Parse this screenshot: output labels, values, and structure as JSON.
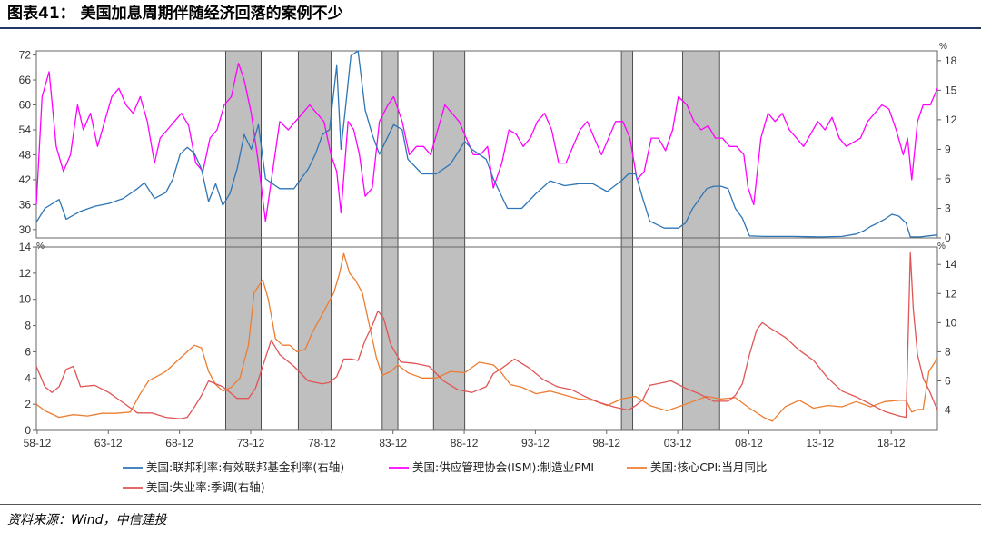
{
  "header": {
    "title": "图表41：   美国加息周期伴随经济回落的案例不少"
  },
  "footer": {
    "source": "资料来源：Wind，中信建投"
  },
  "chart_data": [
    {
      "type": "line",
      "panel": "top",
      "x_range": [
        1958.9,
        2022.2
      ],
      "ylim_left": [
        28,
        73
      ],
      "yticks_left": [
        30,
        36,
        42,
        48,
        54,
        60,
        66,
        72
      ],
      "ylim_right": [
        0,
        19
      ],
      "yticks_right": [
        0,
        3,
        6,
        9,
        12,
        15,
        18
      ],
      "right_unit": "%",
      "series": [
        {
          "name": "美国:联邦利率:有效联邦基金利率(右轴)",
          "axis": "right",
          "color": "#2e75b6",
          "x": [
            1958.9,
            1959.5,
            1960.5,
            1961.0,
            1962.0,
            1963.0,
            1964.0,
            1965.0,
            1966.0,
            1966.5,
            1967.2,
            1968.0,
            1968.5,
            1969.0,
            1969.5,
            1970.0,
            1970.5,
            1971.0,
            1971.5,
            1972.0,
            1972.5,
            1973.0,
            1973.5,
            1974.0,
            1974.5,
            1975.0,
            1975.5,
            1976.0,
            1977.0,
            1978.0,
            1978.5,
            1979.0,
            1979.5,
            1980.0,
            1980.3,
            1980.6,
            1981.0,
            1981.5,
            1982.0,
            1982.5,
            1983.0,
            1984.0,
            1984.6,
            1985.0,
            1986.0,
            1987.0,
            1988.0,
            1989.0,
            1989.5,
            1990.0,
            1990.5,
            1991.0,
            1992.0,
            1993.0,
            1994.0,
            1995.0,
            1996.0,
            1997.0,
            1998.0,
            1999.0,
            2000.0,
            2000.5,
            2001.0,
            2001.5,
            2002.0,
            2003.0,
            2004.0,
            2004.5,
            2005.0,
            2006.0,
            2006.5,
            2007.0,
            2007.5,
            2008.0,
            2008.5,
            2009.0,
            2010.0,
            2012.0,
            2014.0,
            2015.5,
            2016.5,
            2017.0,
            2017.5,
            2018.0,
            2018.5,
            2019.0,
            2019.5,
            2020.0,
            2020.3,
            2021.0,
            2022.2
          ],
          "values": [
            1.6,
            3.0,
            3.9,
            1.9,
            2.7,
            3.2,
            3.5,
            4.0,
            5.0,
            5.6,
            4.0,
            4.6,
            6.0,
            8.5,
            9.2,
            8.6,
            7.0,
            3.7,
            5.5,
            3.3,
            4.5,
            7.0,
            10.5,
            9.0,
            11.5,
            6.0,
            5.5,
            5.0,
            5.0,
            7.0,
            8.5,
            10.5,
            11.0,
            17.5,
            9.0,
            13.0,
            18.5,
            19.0,
            13.0,
            10.5,
            8.5,
            11.5,
            11.0,
            8.0,
            6.5,
            6.5,
            7.5,
            9.8,
            9.0,
            8.5,
            8.0,
            6.0,
            3.0,
            3.0,
            4.5,
            5.8,
            5.3,
            5.5,
            5.5,
            4.7,
            5.8,
            6.5,
            6.5,
            4.0,
            1.7,
            1.0,
            1.0,
            1.5,
            3.0,
            5.0,
            5.25,
            5.25,
            5.0,
            3.0,
            2.0,
            0.2,
            0.15,
            0.15,
            0.1,
            0.15,
            0.4,
            0.7,
            1.15,
            1.5,
            1.9,
            2.4,
            2.2,
            1.5,
            0.1,
            0.1,
            0.3
          ]
        },
        {
          "name": "美国:供应管理协会(ISM):制造业PMI",
          "axis": "left",
          "color": "#ff00ff",
          "x": [
            1958.9,
            1959.3,
            1959.8,
            1960.3,
            1960.8,
            1961.3,
            1961.8,
            1962.2,
            1962.7,
            1963.2,
            1963.7,
            1964.2,
            1964.7,
            1965.2,
            1965.7,
            1966.2,
            1966.7,
            1967.2,
            1967.6,
            1968.1,
            1968.6,
            1969.1,
            1969.6,
            1970.1,
            1970.6,
            1971.1,
            1971.6,
            1972.1,
            1972.6,
            1973.1,
            1973.5,
            1974.0,
            1974.5,
            1975.0,
            1975.5,
            1976.0,
            1976.6,
            1977.1,
            1977.6,
            1978.1,
            1978.6,
            1979.1,
            1979.6,
            1980.0,
            1980.3,
            1980.8,
            1981.2,
            1981.6,
            1982.0,
            1982.5,
            1983.0,
            1983.6,
            1984.0,
            1984.6,
            1985.1,
            1985.6,
            1986.1,
            1986.6,
            1987.1,
            1987.6,
            1988.1,
            1988.6,
            1989.1,
            1989.6,
            1990.1,
            1990.6,
            1991.0,
            1991.6,
            1992.1,
            1992.6,
            1993.1,
            1993.6,
            1994.1,
            1994.6,
            1995.1,
            1995.6,
            1996.1,
            1996.6,
            1997.1,
            1997.6,
            1998.1,
            1998.6,
            1999.1,
            1999.6,
            2000.1,
            2000.6,
            2001.1,
            2001.6,
            2002.1,
            2002.6,
            2003.1,
            2003.6,
            2004.0,
            2004.6,
            2005.1,
            2005.6,
            2006.1,
            2006.6,
            2007.1,
            2007.6,
            2008.1,
            2008.6,
            2008.9,
            2009.3,
            2009.8,
            2010.3,
            2010.8,
            2011.3,
            2011.8,
            2012.3,
            2012.8,
            2013.3,
            2013.8,
            2014.3,
            2014.8,
            2015.3,
            2015.8,
            2016.3,
            2016.8,
            2017.3,
            2017.8,
            2018.3,
            2018.8,
            2019.3,
            2019.8,
            2020.1,
            2020.4,
            2020.8,
            2021.2,
            2021.7,
            2022.2
          ],
          "values": [
            36,
            62,
            68,
            50,
            44,
            48,
            60,
            54,
            58,
            50,
            56,
            62,
            64,
            60,
            58,
            62,
            56,
            46,
            52,
            54,
            56,
            58,
            55,
            46,
            44,
            52,
            54,
            60,
            62,
            70,
            66,
            58,
            46,
            32,
            44,
            56,
            54,
            56,
            58,
            60,
            58,
            56,
            48,
            44,
            34,
            56,
            54,
            48,
            38,
            40,
            56,
            60,
            62,
            56,
            48,
            50,
            50,
            48,
            54,
            60,
            58,
            56,
            52,
            48,
            48,
            50,
            40,
            46,
            54,
            53,
            50,
            52,
            56,
            58,
            54,
            46,
            46,
            50,
            54,
            56,
            52,
            48,
            52,
            56,
            56,
            52,
            42,
            44,
            52,
            52,
            49,
            54,
            62,
            60,
            56,
            54,
            55,
            52,
            52,
            50,
            50,
            48,
            40,
            36,
            52,
            58,
            56,
            58,
            54,
            52,
            50,
            53,
            56,
            54,
            57,
            52,
            50,
            51,
            52,
            56,
            58,
            60,
            59,
            54,
            48,
            52,
            42,
            56,
            60,
            60,
            64
          ]
        }
      ]
    },
    {
      "type": "line",
      "panel": "bottom",
      "x_range": [
        1958.9,
        2022.2
      ],
      "ylim_left": [
        0,
        14
      ],
      "yticks_left": [
        0,
        2,
        4,
        6,
        8,
        10,
        12,
        14
      ],
      "left_unit": "%",
      "ylim_right": [
        2.6,
        15.2
      ],
      "yticks_right": [
        4,
        6,
        8,
        10,
        12,
        14
      ],
      "right_unit": "%",
      "series": [
        {
          "name": "美国:核心CPI:当月同比",
          "axis": "left",
          "color": "#ed7d31",
          "x": [
            1958.9,
            1959.5,
            1960.5,
            1961.5,
            1962.5,
            1963.5,
            1964.5,
            1965.5,
            1966.2,
            1966.8,
            1967.5,
            1968.0,
            1969.0,
            1970.0,
            1970.5,
            1971.0,
            1971.5,
            1972.0,
            1972.6,
            1973.2,
            1973.8,
            1974.2,
            1974.8,
            1975.2,
            1975.7,
            1976.2,
            1976.7,
            1977.2,
            1977.8,
            1978.3,
            1978.8,
            1979.3,
            1979.8,
            1980.2,
            1980.5,
            1980.9,
            1981.3,
            1981.8,
            1982.3,
            1982.8,
            1983.2,
            1983.8,
            1984.3,
            1985.0,
            1986.0,
            1987.0,
            1988.0,
            1989.0,
            1990.0,
            1991.0,
            1991.5,
            1992.2,
            1993.0,
            1994.0,
            1995.0,
            1996.0,
            1997.0,
            1998.0,
            1999.0,
            2000.0,
            2001.0,
            2002.0,
            2003.2,
            2004.0,
            2005.0,
            2006.0,
            2007.0,
            2008.0,
            2009.0,
            2010.0,
            2010.6,
            2011.5,
            2012.5,
            2013.5,
            2014.5,
            2015.5,
            2016.5,
            2017.5,
            2018.5,
            2019.5,
            2020.0,
            2020.4,
            2020.8,
            2021.2,
            2021.6,
            2022.2
          ],
          "values": [
            2.0,
            1.5,
            1.0,
            1.2,
            1.1,
            1.3,
            1.3,
            1.4,
            2.8,
            3.8,
            4.2,
            4.5,
            5.5,
            6.5,
            6.3,
            4.5,
            3.5,
            3.0,
            3.3,
            4.0,
            6.5,
            10.5,
            11.5,
            10.0,
            7.0,
            6.5,
            6.5,
            6.0,
            6.2,
            7.5,
            8.5,
            9.5,
            10.5,
            12.0,
            13.5,
            12.0,
            11.5,
            10.5,
            8.0,
            5.5,
            4.2,
            4.5,
            5.0,
            4.4,
            4.0,
            4.0,
            4.5,
            4.4,
            5.2,
            5.0,
            4.5,
            3.5,
            3.3,
            2.8,
            3.0,
            2.7,
            2.4,
            2.3,
            1.9,
            2.4,
            2.6,
            1.9,
            1.5,
            1.8,
            2.2,
            2.6,
            2.4,
            2.5,
            1.7,
            1.0,
            0.7,
            1.8,
            2.3,
            1.7,
            1.9,
            1.8,
            2.2,
            1.8,
            2.2,
            2.3,
            2.3,
            1.4,
            1.6,
            1.6,
            4.5,
            5.5
          ]
        },
        {
          "name": "美国:失业率:季调(右轴)",
          "axis": "right",
          "color": "#e05555",
          "x": [
            1958.9,
            1959.5,
            1960.0,
            1960.5,
            1961.0,
            1961.5,
            1962.0,
            1963.0,
            1964.0,
            1965.0,
            1966.0,
            1967.0,
            1968.0,
            1969.0,
            1969.5,
            1970.0,
            1970.5,
            1971.0,
            1972.0,
            1973.0,
            1973.8,
            1974.3,
            1974.8,
            1975.4,
            1976.0,
            1977.0,
            1978.0,
            1979.0,
            1979.5,
            1980.0,
            1980.5,
            1981.0,
            1981.5,
            1982.0,
            1982.5,
            1982.9,
            1983.3,
            1983.8,
            1984.5,
            1985.5,
            1986.5,
            1987.5,
            1988.5,
            1989.5,
            1990.5,
            1991.0,
            1991.5,
            1992.5,
            1993.5,
            1994.5,
            1995.5,
            1996.5,
            1997.5,
            1998.5,
            1999.5,
            2000.5,
            2001.0,
            2001.5,
            2002.0,
            2002.5,
            2003.5,
            2004.5,
            2005.5,
            2006.5,
            2007.5,
            2008.0,
            2008.5,
            2009.0,
            2009.5,
            2009.9,
            2010.5,
            2011.5,
            2012.5,
            2013.5,
            2014.5,
            2015.5,
            2016.5,
            2017.5,
            2018.5,
            2019.5,
            2020.0,
            2020.3,
            2020.5,
            2020.8,
            2021.2,
            2021.6,
            2022.2
          ],
          "values": [
            7.0,
            5.6,
            5.2,
            5.6,
            6.8,
            7.0,
            5.6,
            5.7,
            5.2,
            4.5,
            3.8,
            3.8,
            3.5,
            3.4,
            3.5,
            4.2,
            5.0,
            6.0,
            5.6,
            4.8,
            4.8,
            5.5,
            7.0,
            8.8,
            7.8,
            7.0,
            6.0,
            5.8,
            5.9,
            6.3,
            7.5,
            7.5,
            7.4,
            8.8,
            9.8,
            10.8,
            10.3,
            8.5,
            7.3,
            7.2,
            7.0,
            6.0,
            5.4,
            5.2,
            5.6,
            6.5,
            6.8,
            7.5,
            6.9,
            6.1,
            5.6,
            5.4,
            4.9,
            4.5,
            4.2,
            4.0,
            4.3,
            4.7,
            5.7,
            5.8,
            6.0,
            5.5,
            5.1,
            4.6,
            4.6,
            5.0,
            5.8,
            7.8,
            9.5,
            10.0,
            9.6,
            9.0,
            8.1,
            7.4,
            6.2,
            5.3,
            4.9,
            4.4,
            3.9,
            3.6,
            3.5,
            14.8,
            11.0,
            7.8,
            6.2,
            5.4,
            4.0
          ]
        }
      ]
    }
  ],
  "x_axis": {
    "ticks": [
      "58-12",
      "63-12",
      "68-12",
      "73-12",
      "78-12",
      "83-12",
      "88-12",
      "93-12",
      "98-12",
      "03-12",
      "08-12",
      "13-12",
      "18-12"
    ]
  },
  "top_panel": {
    "right_unit": "%"
  },
  "bottom_panel": {
    "left_unit": "%",
    "right_unit": "%"
  },
  "shading": {
    "color": "#bfbfbf",
    "periods": [
      [
        1972.2,
        1974.7
      ],
      [
        1977.3,
        1979.6
      ],
      [
        1983.2,
        1984.3
      ],
      [
        1986.8,
        1989.0
      ],
      [
        2000.0,
        2000.8
      ],
      [
        2004.3,
        2006.9
      ]
    ]
  },
  "legend": {
    "items": [
      {
        "label": "美国:联邦利率:有效联邦基金利率(右轴)",
        "color": "#2e75b6"
      },
      {
        "label": "美国:供应管理协会(ISM):制造业PMI",
        "color": "#ff00ff"
      },
      {
        "label": "美国:核心CPI:当月同比",
        "color": "#ed7d31"
      },
      {
        "label": "美国:失业率:季调(右轴)",
        "color": "#e05555"
      }
    ]
  }
}
